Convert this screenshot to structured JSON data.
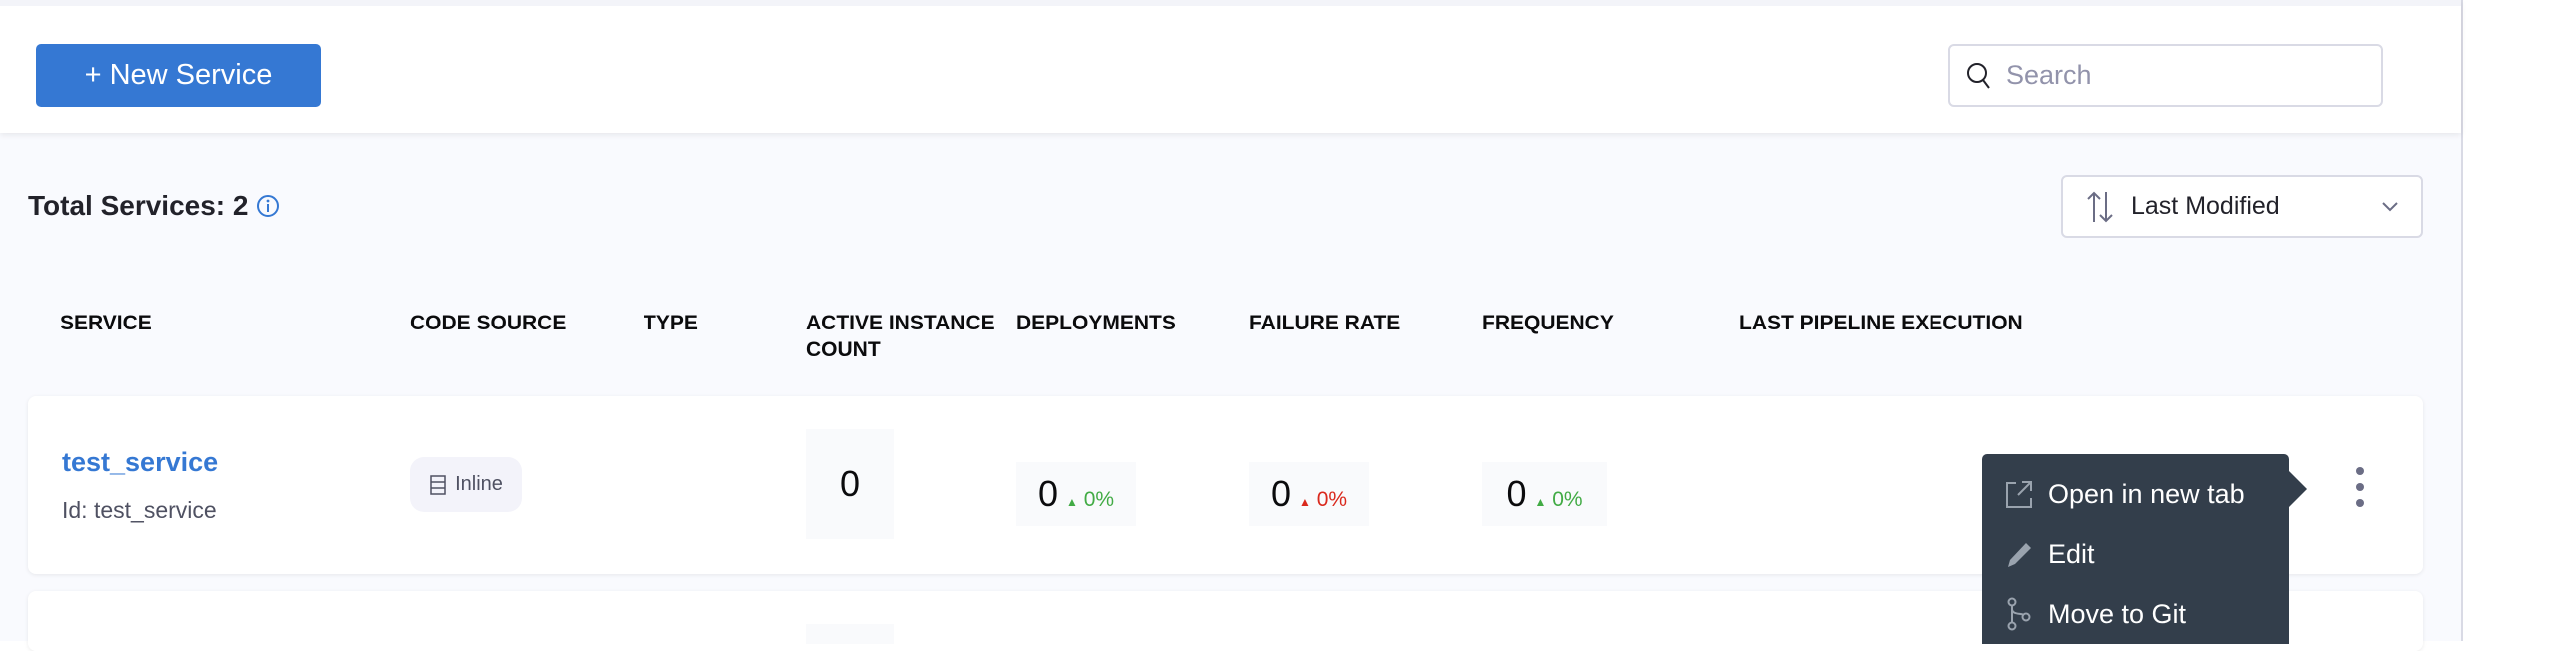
{
  "toolbar": {
    "new_service_label": "+ New Service",
    "search_placeholder": "Search"
  },
  "summary": {
    "total_label": "Total Services: 2"
  },
  "sort": {
    "selected": "Last Modified"
  },
  "table": {
    "columns": [
      "SERVICE",
      "CODE SOURCE",
      "TYPE",
      "ACTIVE INSTANCE COUNT",
      "DEPLOYMENTS",
      "FAILURE RATE",
      "FREQUENCY",
      "LAST PIPELINE EXECUTION"
    ],
    "rows": [
      {
        "name": "test_service",
        "id": "Id: test_service",
        "code_source": "Inline",
        "active_instances": "0",
        "deployments": {
          "value": "0",
          "change": "0%"
        },
        "failure_rate": {
          "value": "0",
          "change": "0%"
        },
        "frequency": {
          "value": "0",
          "change": "0%"
        }
      }
    ]
  },
  "context_menu": {
    "items": [
      {
        "label": "Open in new tab",
        "icon": "external-link-icon"
      },
      {
        "label": "Edit",
        "icon": "pencil-icon"
      },
      {
        "label": "Move to Git",
        "icon": "git-branch-icon"
      }
    ]
  },
  "colors": {
    "accent": "#3578d3",
    "positive": "#42ab45",
    "negative": "#da291d",
    "menu_bg": "#333e4b"
  }
}
